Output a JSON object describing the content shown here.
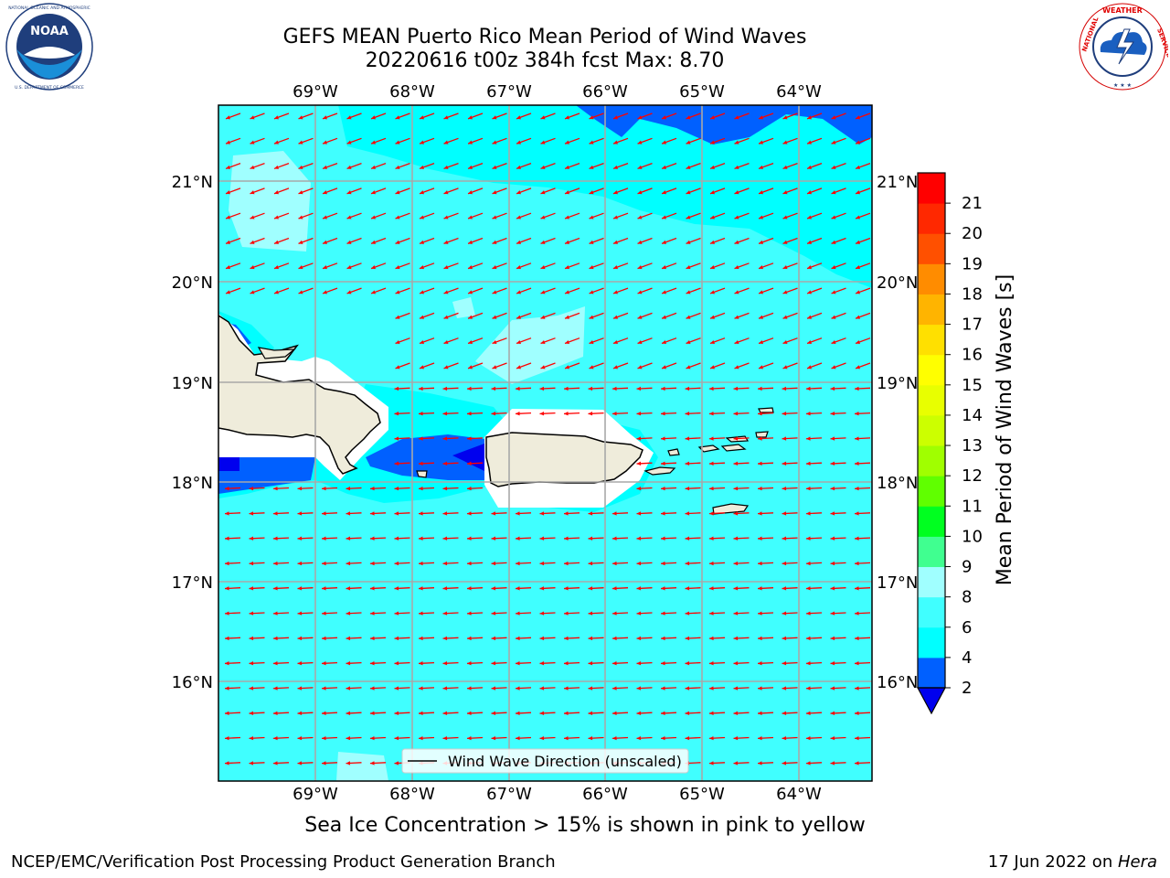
{
  "title": {
    "line1": "GEFS MEAN Puerto Rico Mean Period of Wind Waves",
    "line2": "20220616 t00z 384h fcst   Max: 8.70"
  },
  "logos": {
    "left_text": "NOAA",
    "left_ring_text": "NATIONAL OCEANIC AND ATMOSPHERIC ADMINISTRATION · U.S. DEPARTMENT OF COMMERCE",
    "right_ring_text": "NATIONAL WEATHER SERVICE"
  },
  "map": {
    "lon_labels": [
      "69°W",
      "68°W",
      "67°W",
      "66°W",
      "65°W",
      "64°W"
    ],
    "lat_labels": [
      "21°N",
      "20°N",
      "19°N",
      "18°N",
      "17°N",
      "16°N"
    ],
    "legend_label": "Wind Wave Direction (unscaled)",
    "vector_color": "#ff0000",
    "ocean_color": "#40ffff",
    "land_color": "#efecdb"
  },
  "colorbar": {
    "label": "Mean Period of Wind Waves [s]",
    "ticks": [
      "2",
      "4",
      "6",
      "8",
      "9",
      "10",
      "11",
      "12",
      "13",
      "14",
      "15",
      "16",
      "17",
      "18",
      "19",
      "20",
      "21"
    ],
    "colors": [
      "#0060ff",
      "#00ffff",
      "#40ffff",
      "#a0ffff",
      "#40ff90",
      "#00ff20",
      "#60ff00",
      "#a0ff00",
      "#ccff00",
      "#e8ff00",
      "#ffff00",
      "#ffe000",
      "#ffb400",
      "#ff8c00",
      "#ff5000",
      "#ff2800",
      "#ff0000"
    ],
    "under_color": "#0000ee"
  },
  "caption": "Sea Ice Concentration > 15% is shown in pink to yellow",
  "footer": {
    "left": "NCEP/EMC/Verification Post Processing Product Generation Branch",
    "right_prefix": "17 Jun 2022 on ",
    "right_host": "Hera"
  }
}
